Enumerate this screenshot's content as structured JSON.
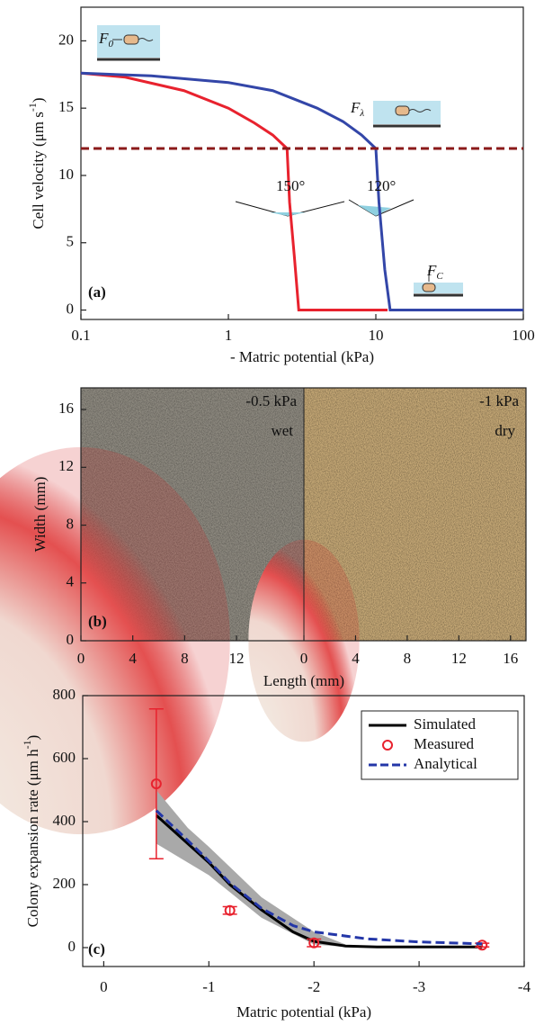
{
  "chart_data": [
    {
      "type": "line",
      "panel_label": "(a)",
      "x_log": true,
      "x_label": "- Matric potential (kPa)",
      "y_label": {
        "text": "Cell velocity (μm s",
        "sup": "-1",
        "end": ")"
      },
      "xlim": [
        0.1,
        100
      ],
      "xticks": [
        0.1,
        1,
        10,
        100
      ],
      "ylim": [
        -0.7,
        22.5
      ],
      "yticks": [
        0,
        5,
        10,
        15,
        20
      ],
      "series": [
        {
          "color": "#e8222e",
          "dash": false,
          "x": [
            0.1,
            0.2,
            0.5,
            1,
            1.5,
            2,
            2.5,
            2.6,
            2.8,
            3,
            12
          ],
          "values": [
            17.6,
            17.3,
            16.3,
            15,
            13.9,
            13,
            12,
            8,
            4,
            0,
            0
          ]
        },
        {
          "color": "#3346a8",
          "dash": false,
          "x": [
            0.1,
            0.3,
            1,
            2,
            4,
            6,
            8,
            10,
            10.5,
            11.5,
            12.5,
            100
          ],
          "values": [
            17.6,
            17.4,
            16.9,
            16.3,
            15,
            14,
            13,
            12,
            8,
            3,
            0,
            0
          ]
        },
        {
          "color": "#8b1a1a",
          "dash": true,
          "x": [
            0.1,
            100
          ],
          "values": [
            12,
            12
          ]
        }
      ],
      "annotations": [
        "150°",
        "120°"
      ],
      "forces": [
        {
          "text": "F",
          "sub": "0"
        },
        {
          "text": "F",
          "sub": "λ"
        },
        {
          "text": "F",
          "sub": "C"
        }
      ]
    },
    {
      "type": "image",
      "panel_label": "(b)",
      "x_label": "Length (mm)",
      "y_label": "Width (mm)",
      "ylim": [
        0,
        17.5
      ],
      "yticks": [
        0,
        4,
        8,
        12,
        16
      ],
      "panels": [
        {
          "potential": "-0.5 kPa",
          "condition": "wet",
          "xlim": [
            0,
            17.2
          ],
          "xticks": [
            0,
            4,
            8,
            12,
            16
          ],
          "background": "#8e8a80",
          "colony_rx": 11.5,
          "colony_ry": 13.4
        },
        {
          "potential": "-1 kPa",
          "condition": "dry",
          "xlim": [
            0,
            17.2
          ],
          "xticks": [
            0,
            4,
            8,
            12,
            16
          ],
          "background": "#c4a775",
          "colony_rx": 4.3,
          "colony_ry": 7
        }
      ]
    },
    {
      "type": "line",
      "panel_label": "(c)",
      "x_label": "Matric potential (kPa)",
      "y_label": {
        "text": "Colony expansion rate (μm h",
        "sup": "-1",
        "end": ")"
      },
      "xlim": [
        0.2,
        -4
      ],
      "xticks": [
        0,
        -1,
        -2,
        -3,
        -4
      ],
      "ylim": [
        -60,
        800
      ],
      "yticks": [
        0,
        200,
        400,
        600,
        800
      ],
      "band": {
        "color": "#a9a9a9",
        "x": [
          -0.5,
          -0.8,
          -1,
          -1.5,
          -2,
          -2.3
        ],
        "lower": [
          330,
          270,
          230,
          95,
          10,
          2
        ],
        "upper": [
          500,
          380,
          320,
          160,
          50,
          10
        ]
      },
      "series": [
        {
          "name": "Simulated",
          "kind": "line",
          "color": "#000000",
          "dash": false,
          "x": [
            -0.5,
            -0.8,
            -1,
            -1.2,
            -1.5,
            -1.8,
            -2,
            -2.3,
            -2.6,
            -3,
            -3.6
          ],
          "values": [
            420,
            330,
            270,
            200,
            120,
            50,
            20,
            5,
            2,
            2,
            2
          ]
        },
        {
          "name": "Measured",
          "kind": "points",
          "color": "#e8222e",
          "x": [
            -0.5,
            -1.2,
            -2,
            -3.6
          ],
          "values": [
            520,
            118,
            15,
            8
          ],
          "errors": [
            238,
            12,
            12,
            6
          ]
        },
        {
          "name": "Analytical",
          "kind": "line",
          "color": "#2437a8",
          "dash": true,
          "x": [
            -0.5,
            -0.8,
            -1,
            -1.2,
            -1.5,
            -1.8,
            -2,
            -2.5,
            -3,
            -3.6
          ],
          "values": [
            435,
            340,
            275,
            205,
            125,
            70,
            50,
            28,
            18,
            12
          ]
        }
      ]
    }
  ]
}
